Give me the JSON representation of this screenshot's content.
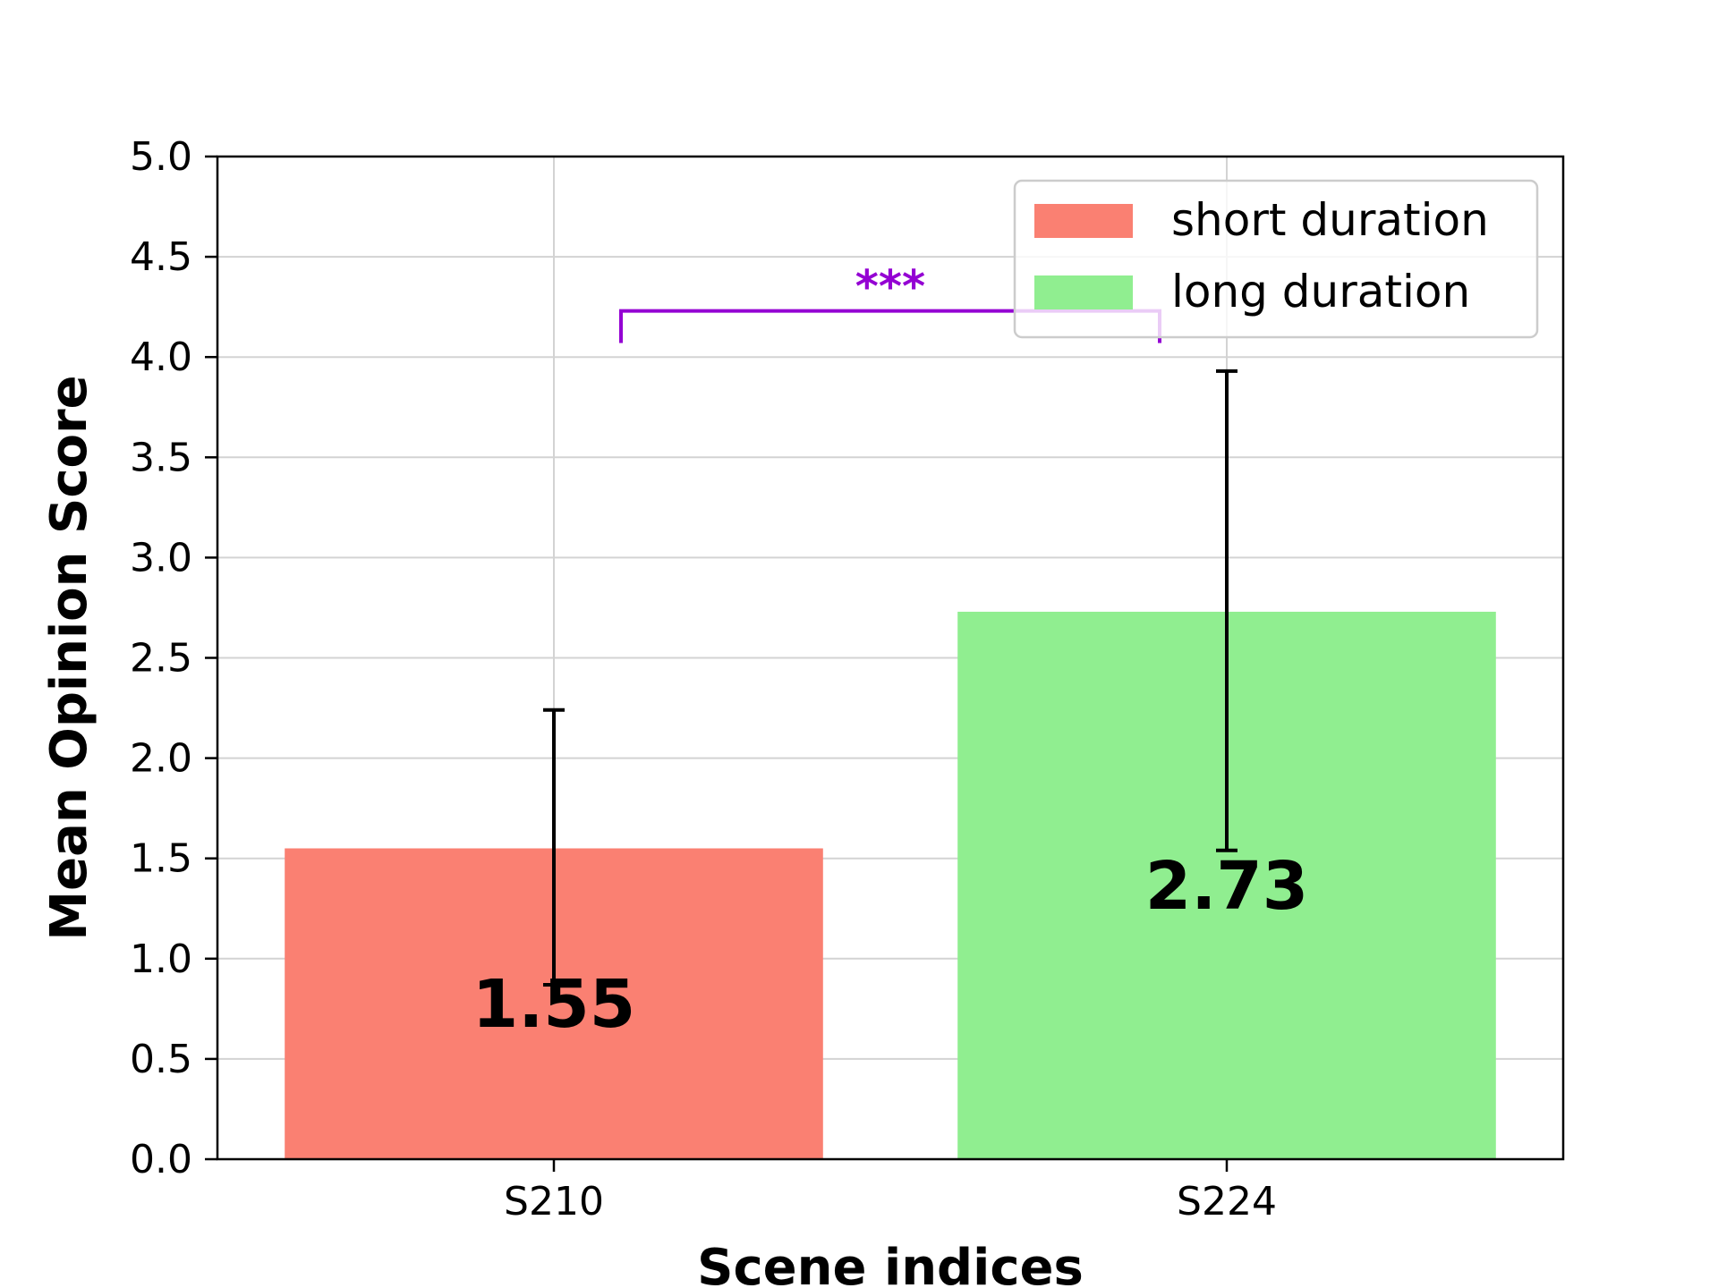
{
  "chart_data": {
    "type": "bar",
    "title": "",
    "xlabel": "Scene indices",
    "ylabel": "Mean Opinion Score",
    "ylim": [
      0,
      5.0
    ],
    "yticks": [
      "0.0",
      "0.5",
      "1.0",
      "1.5",
      "2.0",
      "2.5",
      "3.0",
      "3.5",
      "4.0",
      "4.5",
      "5.0"
    ],
    "categories": [
      "S210",
      "S224"
    ],
    "series": [
      {
        "name": "short duration",
        "category": "S210",
        "value": 1.55,
        "error_low": 0.87,
        "error_high": 2.24,
        "color": "#fa8072",
        "label": "1.55"
      },
      {
        "name": "long duration",
        "category": "S224",
        "value": 2.73,
        "error_low": 1.54,
        "error_high": 3.93,
        "color": "#90ee90",
        "label": "2.73"
      }
    ],
    "significance": {
      "label": "***",
      "between": [
        "S210",
        "S224"
      ],
      "level": 4.23,
      "color": "#9400d3"
    },
    "grid": true,
    "legend_position": "top-right"
  }
}
